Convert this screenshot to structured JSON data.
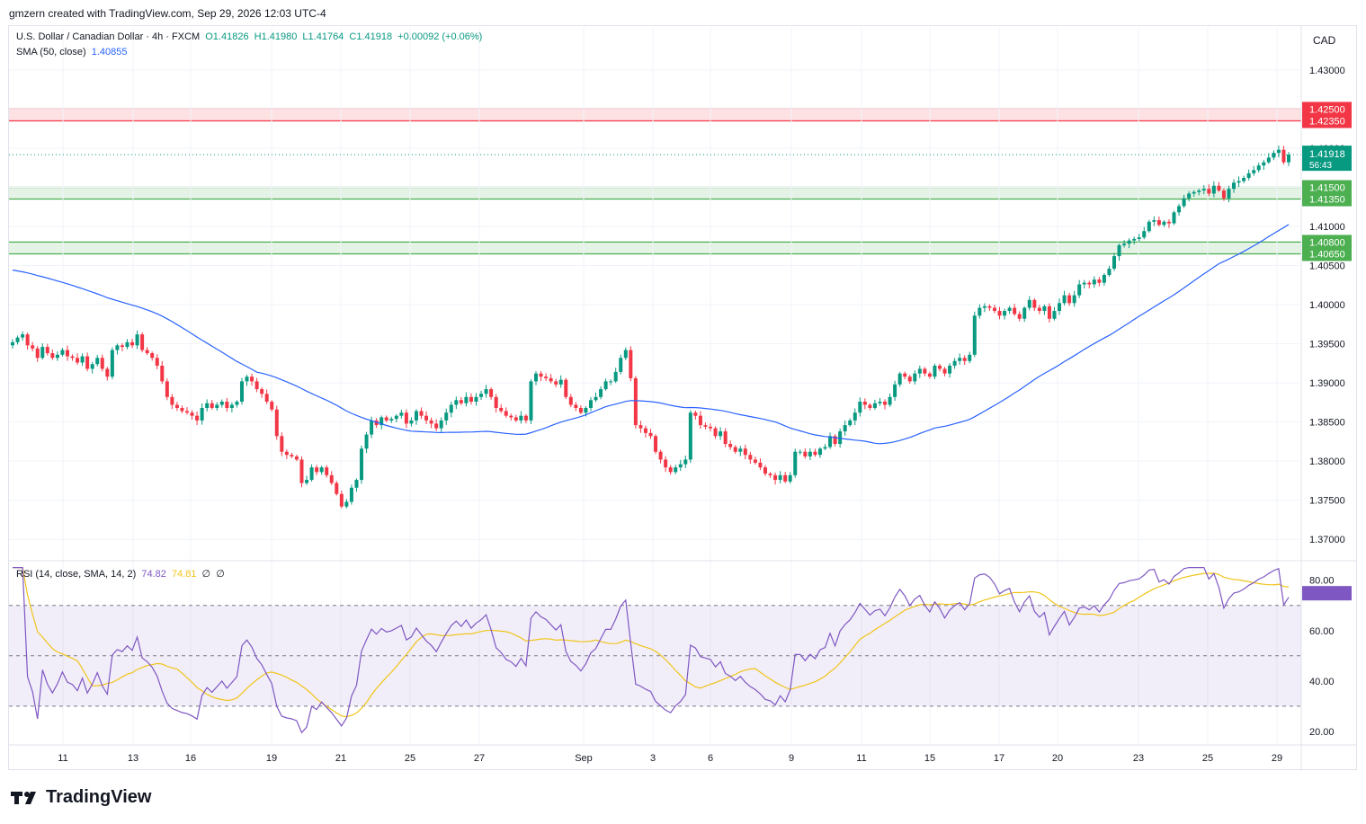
{
  "header": {
    "attribution": "gmzern created with TradingView.com, Sep 29, 2026 12:03 UTC-4"
  },
  "legend": {
    "symbol": "U.S. Dollar / Canadian Dollar · 4h · FXCM",
    "open": "O1.41826",
    "high": "H1.41980",
    "low": "L1.41764",
    "close": "C1.41918",
    "change": "+0.00092 (+0.06%)",
    "sma_label": "SMA (50, close)",
    "sma_value": "1.40855",
    "rsi_label": "RSI (14, close, SMA, 14, 2)",
    "rsi_value": "74.82",
    "rsi_sma_value": "74.81",
    "rsi_extra1": "∅",
    "rsi_extra2": "∅"
  },
  "currency": "CAD",
  "price_badge": {
    "price": "1.41918",
    "countdown": "56:43"
  },
  "zone_labels": {
    "resistance_top": "1.42500",
    "resistance_bottom": "1.42350",
    "support1_top": "1.41500",
    "support1_bottom": "1.41350",
    "support2_top": "1.40800",
    "support2_bottom": "1.40650"
  },
  "brand": {
    "name": "TradingView"
  },
  "colors": {
    "up": "#089981",
    "down": "#f23645",
    "sma": "#2962ff",
    "rsi": "#7e57c2",
    "rsi_sma": "#f0c419",
    "resistance_zone": "#f23645",
    "support_zone": "#4caf50"
  },
  "chart_data": [
    {
      "type": "candlestick",
      "title": "U.S. Dollar / Canadian Dollar · 4h · FXCM",
      "ylim": [
        1.3675,
        1.4355
      ],
      "y_ticks": [
        "1.43000",
        "1.42500",
        "1.42000",
        "1.41500",
        "1.41000",
        "1.40500",
        "1.40000",
        "1.39500",
        "1.39000",
        "1.38500",
        "1.38000",
        "1.37500",
        "1.37000"
      ],
      "x_ticks": [
        "11",
        "13",
        "16",
        "19",
        "21",
        "25",
        "27",
        "Sep",
        "3",
        "6",
        "9",
        "11",
        "15",
        "17",
        "20",
        "23",
        "25",
        "29"
      ],
      "zones": [
        {
          "kind": "resistance",
          "from": 1.4235,
          "to": 1.425
        },
        {
          "kind": "support",
          "from": 1.4135,
          "to": 1.415
        },
        {
          "kind": "support",
          "from": 1.4065,
          "to": 1.408
        }
      ],
      "last_price": 1.41918,
      "close_series": [
        1.3952,
        1.3958,
        1.3962,
        1.3948,
        1.3944,
        1.3932,
        1.3946,
        1.3938,
        1.3932,
        1.3936,
        1.3942,
        1.3934,
        1.3932,
        1.3926,
        1.3934,
        1.3918,
        1.3924,
        1.3932,
        1.3918,
        1.3908,
        1.3942,
        1.3948,
        1.3946,
        1.3952,
        1.3948,
        1.3962,
        1.3942,
        1.3938,
        1.3932,
        1.3922,
        1.3902,
        1.3882,
        1.3872,
        1.3868,
        1.3864,
        1.3862,
        1.3858,
        1.3852,
        1.3868,
        1.3874,
        1.3868,
        1.3872,
        1.3876,
        1.3868,
        1.3872,
        1.3876,
        1.3902,
        1.3908,
        1.3902,
        1.3892,
        1.3886,
        1.3876,
        1.3866,
        1.3832,
        1.3812,
        1.3808,
        1.3806,
        1.3802,
        1.3772,
        1.3776,
        1.3792,
        1.3786,
        1.3792,
        1.3782,
        1.3772,
        1.3758,
        1.3742,
        1.3748,
        1.3766,
        1.3776,
        1.3816,
        1.3834,
        1.3852,
        1.3846,
        1.3856,
        1.3852,
        1.3854,
        1.3858,
        1.3862,
        1.3848,
        1.3852,
        1.3864,
        1.3858,
        1.3852,
        1.3848,
        1.3842,
        1.3852,
        1.3862,
        1.3872,
        1.3878,
        1.3874,
        1.3882,
        1.3876,
        1.3882,
        1.3886,
        1.3892,
        1.3882,
        1.3868,
        1.3864,
        1.3858,
        1.3856,
        1.3852,
        1.3858,
        1.3852,
        1.3902,
        1.3912,
        1.3908,
        1.3906,
        1.3902,
        1.3898,
        1.3904,
        1.3882,
        1.3872,
        1.3868,
        1.3862,
        1.3868,
        1.3878,
        1.3882,
        1.3892,
        1.3902,
        1.3902,
        1.3914,
        1.3932,
        1.3942,
        1.3906,
        1.3846,
        1.3842,
        1.3836,
        1.3832,
        1.3812,
        1.3802,
        1.3792,
        1.3786,
        1.3792,
        1.3796,
        1.3802,
        1.3862,
        1.3858,
        1.3846,
        1.3844,
        1.3842,
        1.3832,
        1.3838,
        1.3822,
        1.3818,
        1.3812,
        1.3816,
        1.3808,
        1.3802,
        1.3798,
        1.3792,
        1.3784,
        1.3782,
        1.3776,
        1.3782,
        1.3774,
        1.3782,
        1.3812,
        1.3812,
        1.3806,
        1.3812,
        1.3808,
        1.3816,
        1.3818,
        1.3832,
        1.3822,
        1.3838,
        1.3846,
        1.3852,
        1.3862,
        1.3876,
        1.3872,
        1.3868,
        1.3874,
        1.3876,
        1.3872,
        1.3882,
        1.3898,
        1.3912,
        1.3908,
        1.3902,
        1.3912,
        1.3918,
        1.3912,
        1.3908,
        1.3922,
        1.3918,
        1.3912,
        1.3922,
        1.3928,
        1.3932,
        1.3928,
        1.3936,
        1.3986,
        1.3996,
        1.3998,
        1.3996,
        1.3992,
        1.3986,
        1.3992,
        1.3996,
        1.3988,
        1.3982,
        1.3996,
        1.4006,
        1.3996,
        1.3992,
        1.3998,
        1.3982,
        1.3992,
        1.4002,
        1.4012,
        1.4002,
        1.4012,
        1.4026,
        1.4028,
        1.4026,
        1.4032,
        1.4028,
        1.4038,
        1.4046,
        1.4062,
        1.4076,
        1.4078,
        1.4082,
        1.4084,
        1.4086,
        1.4094,
        1.4106,
        1.4108,
        1.4102,
        1.4106,
        1.4104,
        1.4118,
        1.4126,
        1.4136,
        1.4142,
        1.4144,
        1.4146,
        1.4148,
        1.4142,
        1.4152,
        1.4146,
        1.4136,
        1.4148,
        1.4156,
        1.4158,
        1.4162,
        1.4168,
        1.4172,
        1.4178,
        1.4182,
        1.4188,
        1.4194,
        1.4198,
        1.4182,
        1.41918
      ],
      "series": [
        {
          "name": "SMA (50, close)",
          "last": 1.40855
        }
      ]
    },
    {
      "type": "line",
      "title": "RSI (14, close, SMA, 14, 2)",
      "ylim": [
        15,
        87
      ],
      "y_ticks": [
        "80.00",
        "60.00",
        "40.00",
        "20.00"
      ],
      "bands": [
        30,
        50,
        70
      ],
      "series": [
        {
          "name": "RSI",
          "last": 74.82
        },
        {
          "name": "SMA",
          "last": 74.81
        }
      ]
    }
  ]
}
